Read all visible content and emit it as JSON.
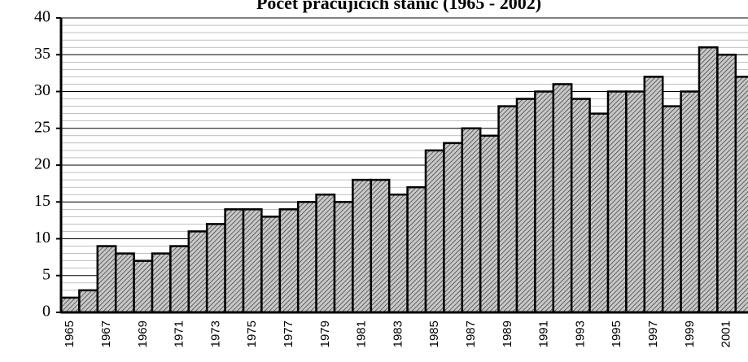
{
  "chart_data": {
    "type": "bar",
    "title": "Počet pracujících stanic (1965 - 2002)",
    "categories": [
      "1965",
      null,
      "1967",
      null,
      "1969",
      null,
      "1971",
      null,
      "1973",
      null,
      "1975",
      null,
      "1977",
      null,
      "1979",
      null,
      "1981",
      null,
      "1983",
      null,
      "1985",
      null,
      "1987",
      null,
      "1989",
      null,
      "1991",
      null,
      "1993",
      null,
      "1995",
      null,
      "1997",
      null,
      "1999",
      null,
      "2001",
      null
    ],
    "values": [
      2,
      3,
      9,
      8,
      7,
      8,
      9,
      11,
      12,
      14,
      14,
      13,
      14,
      15,
      16,
      15,
      18,
      18,
      16,
      17,
      22,
      23,
      25,
      24,
      28,
      29,
      30,
      31,
      29,
      27,
      30,
      30,
      32,
      28,
      30,
      36,
      35,
      32
    ],
    "color": "#c8c8c8",
    "ylim": [
      0,
      40
    ],
    "yticks": [
      0,
      5,
      10,
      15,
      20,
      25,
      30,
      35,
      40
    ],
    "grid": true,
    "minor_grid": true
  }
}
